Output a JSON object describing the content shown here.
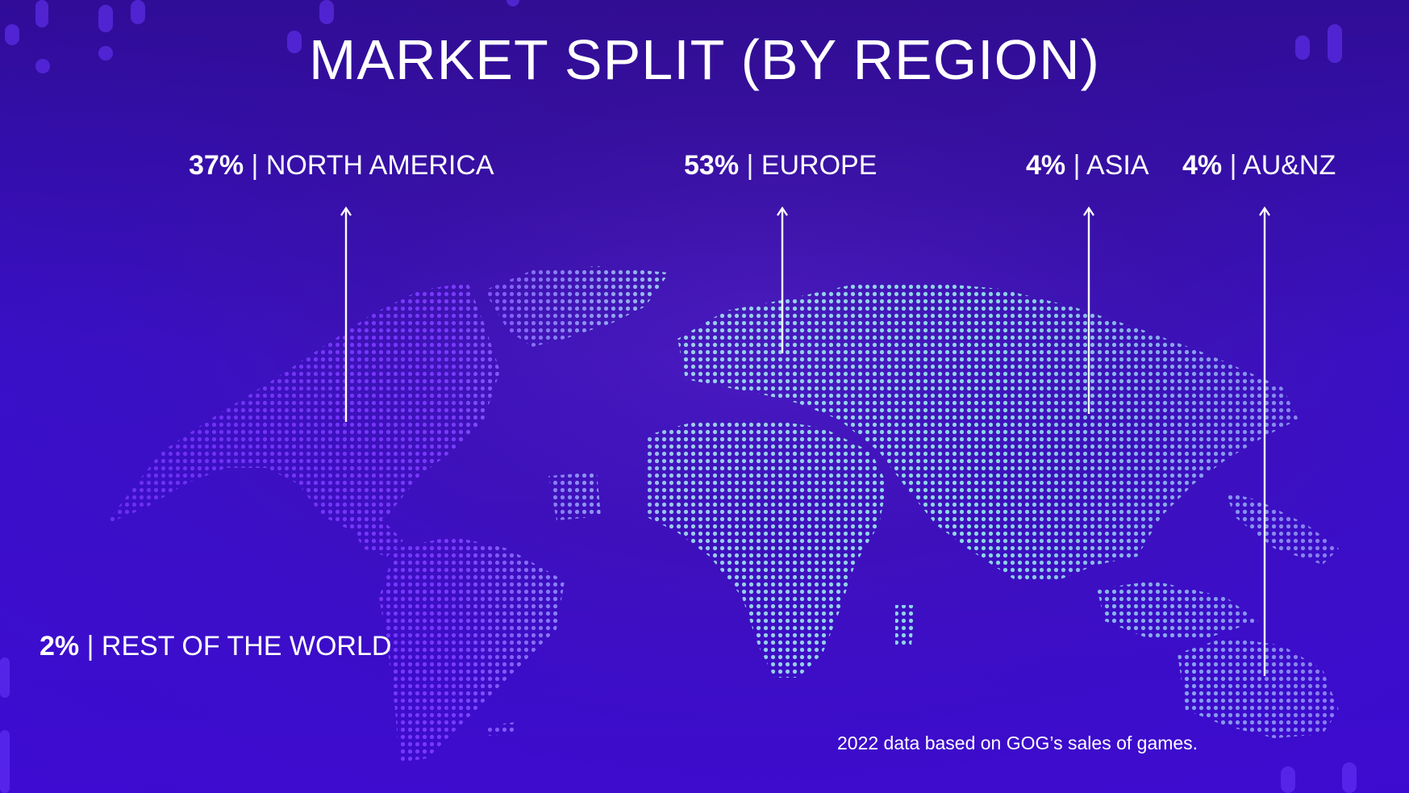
{
  "title": "MARKET SPLIT (BY REGION)",
  "separator": "|",
  "footnote": "2022 data based on GOG’s sales of games.",
  "colors": {
    "background": "#3d12b8",
    "text": "#ffffff",
    "dots_east": "#8fe3ea",
    "dots_west": "#7a3cff",
    "decoration": "#6a38ff"
  },
  "chart_data": {
    "type": "map",
    "title": "MARKET SPLIT (BY REGION)",
    "unit": "%",
    "regions": [
      {
        "name": "NORTH AMERICA",
        "value": 37,
        "display": "37%"
      },
      {
        "name": "EUROPE",
        "value": 53,
        "display": "53%"
      },
      {
        "name": "ASIA",
        "value": 4,
        "display": "4%"
      },
      {
        "name": "AU&NZ",
        "value": 4,
        "display": "4%"
      },
      {
        "name": "REST OF THE WORLD",
        "value": 2,
        "display": "2%"
      }
    ]
  }
}
